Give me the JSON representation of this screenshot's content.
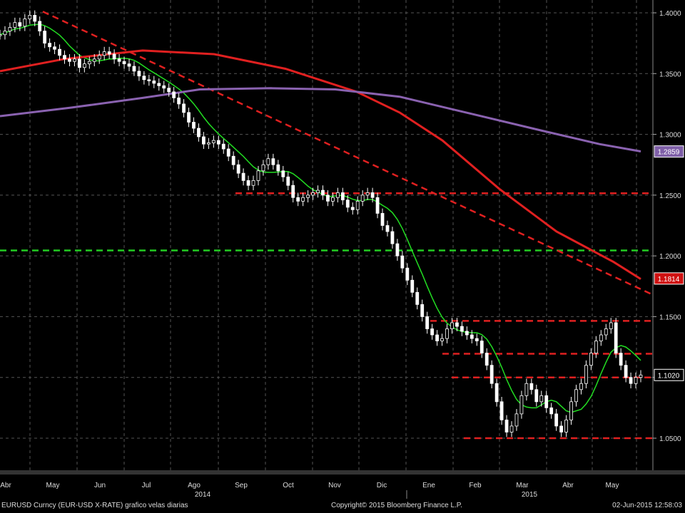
{
  "chart_data": {
    "type": "candlestick",
    "instrument": "EURUSD Curncy (EUR-USD X-RATE) grafico velas diarias",
    "x_months": [
      "Abr",
      "May",
      "Jun",
      "Jul",
      "Ago",
      "Sep",
      "Oct",
      "Nov",
      "Dic",
      "Ene",
      "Feb",
      "Mar",
      "Abr",
      "May"
    ],
    "x_years": [
      "2014",
      "2015"
    ],
    "ylim": [
      1.04,
      1.405
    ],
    "y_ticks": [
      "1.4000",
      "1.3500",
      "1.3000",
      "1.2500",
      "1.2000",
      "1.1500",
      "1.1000",
      "1.0500"
    ],
    "y_tick_values": [
      1.4,
      1.35,
      1.3,
      1.25,
      1.2,
      1.15,
      1.1,
      1.05
    ],
    "last_labels": [
      {
        "value": "1.2859",
        "color": "#7f5fa8",
        "text_color": "#ffffff"
      },
      {
        "value": "1.1814",
        "color": "#d01010",
        "text_color": "#ffffff"
      },
      {
        "value": "1.1020",
        "color": "#000000",
        "text_color": "#ffffff"
      }
    ],
    "price_series_daily_close": [
      1.382,
      1.385,
      1.388,
      1.392,
      1.389,
      1.395,
      1.398,
      1.393,
      1.385,
      1.375,
      1.372,
      1.37,
      1.365,
      1.362,
      1.36,
      1.362,
      1.355,
      1.358,
      1.36,
      1.362,
      1.365,
      1.368,
      1.366,
      1.362,
      1.36,
      1.358,
      1.356,
      1.352,
      1.348,
      1.345,
      1.344,
      1.342,
      1.34,
      1.338,
      1.335,
      1.33,
      1.325,
      1.318,
      1.31,
      1.305,
      1.298,
      1.292,
      1.293,
      1.295,
      1.292,
      1.288,
      1.282,
      1.275,
      1.268,
      1.262,
      1.258,
      1.262,
      1.27,
      1.275,
      1.28,
      1.275,
      1.27,
      1.265,
      1.258,
      1.248,
      1.245,
      1.248,
      1.25,
      1.252,
      1.254,
      1.25,
      1.245,
      1.248,
      1.252,
      1.246,
      1.24,
      1.238,
      1.245,
      1.25,
      1.252,
      1.248,
      1.235,
      1.225,
      1.22,
      1.21,
      1.2,
      1.19,
      1.18,
      1.17,
      1.16,
      1.15,
      1.14,
      1.135,
      1.13,
      1.132,
      1.14,
      1.145,
      1.142,
      1.138,
      1.135,
      1.132,
      1.13,
      1.12,
      1.11,
      1.095,
      1.08,
      1.065,
      1.055,
      1.06,
      1.07,
      1.085,
      1.095,
      1.09,
      1.08,
      1.085,
      1.075,
      1.07,
      1.06,
      1.055,
      1.065,
      1.08,
      1.09,
      1.095,
      1.11,
      1.12,
      1.13,
      1.135,
      1.14,
      1.145,
      1.12,
      1.11,
      1.1,
      1.095,
      1.1,
      1.102
    ],
    "series": [
      {
        "name": "",
        "color": "#22dd22",
        "type": "moving_average_short"
      },
      {
        "name": "",
        "color": "#e02020",
        "type": "moving_average_mid"
      },
      {
        "name": "",
        "color": "#8a62b0",
        "type": "moving_average_long"
      }
    ],
    "horizontal_levels": [
      {
        "value": 1.2515,
        "color": "#e02020",
        "dash": true
      },
      {
        "value": 1.2045,
        "color": "#22cc22",
        "dash": true
      },
      {
        "value": 1.1465,
        "color": "#e02020",
        "dash": true
      },
      {
        "value": 1.1195,
        "color": "#e02020",
        "dash": true
      },
      {
        "value": 1.1,
        "color": "#e02020",
        "dash": true
      },
      {
        "value": 1.05,
        "color": "#e02020",
        "dash": true
      }
    ],
    "trendline": {
      "from": 1.401,
      "to": 1.168,
      "color": "#e02020",
      "dash": true
    },
    "grid": true
  },
  "footer": {
    "left": "EURUSD Curncy (EUR-USD X-RATE) grafico velas diarias",
    "center": "Copyright© 2015 Bloomberg Finance L.P.",
    "right": "02-Jun-2015 12:58:03"
  }
}
